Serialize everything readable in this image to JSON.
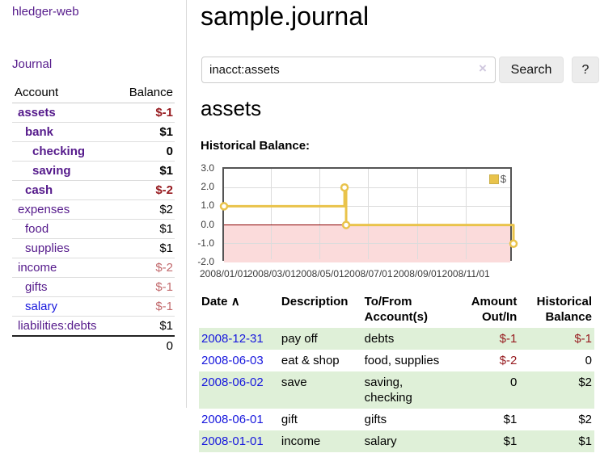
{
  "app": {
    "brand": "hledger-web",
    "nav": {
      "journal": "Journal"
    }
  },
  "header": {
    "title": "sample.journal"
  },
  "search": {
    "value": "inacct:assets",
    "clear_icon": "×",
    "search_button": "Search",
    "help_button": "?"
  },
  "main": {
    "account_title": "assets",
    "chart_heading": "Historical Balance:"
  },
  "sidebar": {
    "table_headers": {
      "account": "Account",
      "balance": "Balance"
    },
    "accounts": [
      {
        "name": "assets",
        "balance": "$-1"
      },
      {
        "name": "bank",
        "balance": "$1"
      },
      {
        "name": "checking",
        "balance": "0"
      },
      {
        "name": "saving",
        "balance": "$1"
      },
      {
        "name": "cash",
        "balance": "$-2"
      },
      {
        "name": "expenses",
        "balance": "$2"
      },
      {
        "name": "food",
        "balance": "$1"
      },
      {
        "name": "supplies",
        "balance": "$1"
      },
      {
        "name": "income",
        "balance": "$-2"
      },
      {
        "name": "gifts",
        "balance": "$-1"
      },
      {
        "name": "salary",
        "balance": "$-1"
      },
      {
        "name": "liabilities:debts",
        "balance": "$1"
      }
    ],
    "total": "0"
  },
  "chart_data": {
    "type": "line",
    "series": [
      {
        "name": "$",
        "step": true,
        "color": "#e9c34b",
        "points": [
          {
            "date": "2008-01-01",
            "value": 1.0
          },
          {
            "date": "2008-06-01",
            "value": 2.0
          },
          {
            "date": "2008-06-03",
            "value": 0.0
          },
          {
            "date": "2008-12-31",
            "value": -1.0
          }
        ]
      }
    ],
    "xlim": [
      "2008-01-01",
      "2008-12-31"
    ],
    "ylim": [
      -2.0,
      3.0
    ],
    "y_ticks": [
      3.0,
      2.0,
      1.0,
      0.0,
      -1.0,
      -2.0
    ],
    "y_tick_labels": [
      "3.0",
      "2.0",
      "1.0",
      "0.0",
      "-1.0",
      "-2.0"
    ],
    "x_tick_labels": [
      "2008/01/01",
      "2008/03/01",
      "2008/05/01",
      "2008/07/01",
      "2008/09/01",
      "2008/11/01"
    ],
    "legend": {
      "label": "$",
      "position": "top-right"
    },
    "grid": true,
    "gridline_color": "#dcdcdc",
    "zero_line_color": "#8b0000",
    "negative_region_color": "#fbdbdb",
    "border_color": "#545454"
  },
  "register": {
    "headers": {
      "date": "Date",
      "sort_arrow": "∧",
      "description": "Description",
      "tofrom_line1": "To/From",
      "tofrom_line2": "Account(s)",
      "amount_line1": "Amount",
      "amount_line2": "Out/In",
      "balance_line1": "Historical",
      "balance_line2": "Balance"
    },
    "rows": [
      {
        "date": "2008-12-31",
        "description": "pay off",
        "accounts": "debts",
        "amount": "$-1",
        "balance": "$-1"
      },
      {
        "date": "2008-06-03",
        "description": "eat & shop",
        "accounts": "food, supplies",
        "amount": "$-2",
        "balance": "0"
      },
      {
        "date": "2008-06-02",
        "description": "save",
        "accounts": "saving,\nchecking",
        "amount": "0",
        "balance": "$2"
      },
      {
        "date": "2008-06-01",
        "description": "gift",
        "accounts": "gifts",
        "amount": "$1",
        "balance": "$2"
      },
      {
        "date": "2008-01-01",
        "description": "income",
        "accounts": "salary",
        "amount": "$1",
        "balance": "$1"
      }
    ]
  },
  "colors": {
    "link_purple": "#551a8b",
    "link_blue": "#1717dd",
    "negative_strong": "#96191e",
    "negative_soft": "#c2696c",
    "row_green": "#dff0d8",
    "chart_line": "#e9c34b"
  }
}
